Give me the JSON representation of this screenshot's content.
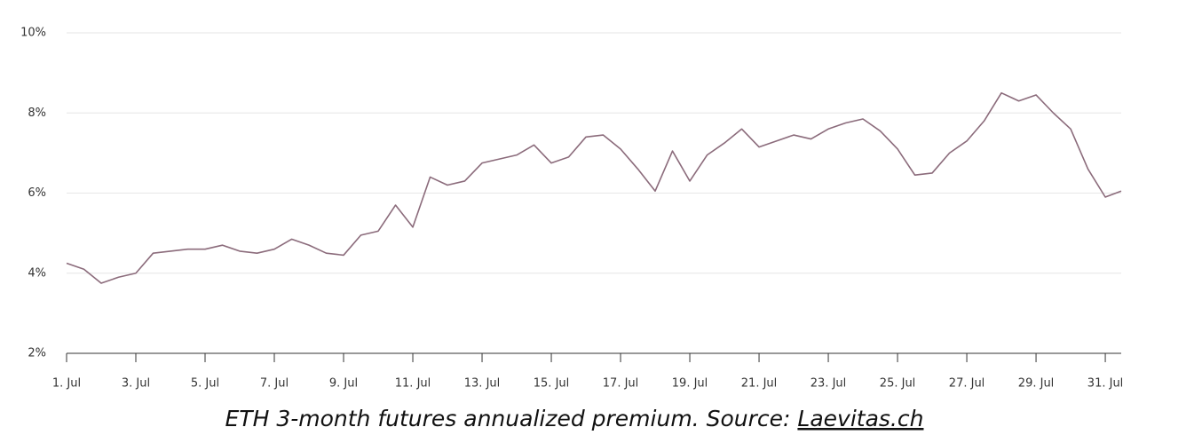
{
  "chart_data": {
    "type": "line",
    "x": [
      1,
      1.5,
      2,
      2.5,
      3,
      3.5,
      4,
      4.5,
      5,
      5.5,
      6,
      6.5,
      7,
      7.5,
      8,
      8.5,
      9,
      9.5,
      10,
      10.5,
      11,
      11.5,
      12,
      12.5,
      13,
      13.5,
      14,
      14.5,
      15,
      15.5,
      16,
      16.5,
      17,
      17.5,
      18,
      18.5,
      19,
      19.5,
      20,
      20.5,
      21,
      21.5,
      22,
      22.5,
      23,
      23.5,
      24,
      24.5,
      25,
      25.5,
      26,
      26.5,
      27,
      27.5,
      28,
      28.5,
      29,
      29.5,
      30,
      30.5,
      31,
      31.46
    ],
    "series": [
      {
        "name": "ETH 3-month futures annualized premium",
        "color": "#8b6b7b",
        "values": [
          4.25,
          4.1,
          3.75,
          3.9,
          4.0,
          4.5,
          4.55,
          4.6,
          4.6,
          4.7,
          4.55,
          4.5,
          4.6,
          4.85,
          4.7,
          4.5,
          4.45,
          4.95,
          5.05,
          5.7,
          5.15,
          6.4,
          6.2,
          6.3,
          6.75,
          6.85,
          6.95,
          7.2,
          6.75,
          6.9,
          7.4,
          7.45,
          7.1,
          6.6,
          6.05,
          7.05,
          6.3,
          6.95,
          7.25,
          7.6,
          7.15,
          7.3,
          7.45,
          7.35,
          7.6,
          7.75,
          7.85,
          7.55,
          7.1,
          6.45,
          6.5,
          7.0,
          7.3,
          7.8,
          8.5,
          8.3,
          8.45,
          8.0,
          7.6,
          6.6,
          5.9,
          6.05
        ]
      }
    ],
    "xlim": [
      1,
      31.46
    ],
    "xticks": [
      {
        "value": 1,
        "label": "1. Jul"
      },
      {
        "value": 3,
        "label": "3. Jul"
      },
      {
        "value": 5,
        "label": "5. Jul"
      },
      {
        "value": 7,
        "label": "7. Jul"
      },
      {
        "value": 9,
        "label": "9. Jul"
      },
      {
        "value": 11,
        "label": "11. Jul"
      },
      {
        "value": 13,
        "label": "13. Jul"
      },
      {
        "value": 15,
        "label": "15. Jul"
      },
      {
        "value": 17,
        "label": "17. Jul"
      },
      {
        "value": 19,
        "label": "19. Jul"
      },
      {
        "value": 21,
        "label": "21. Jul"
      },
      {
        "value": 23,
        "label": "23. Jul"
      },
      {
        "value": 25,
        "label": "25. Jul"
      },
      {
        "value": 27,
        "label": "27. Jul"
      },
      {
        "value": 29,
        "label": "29. Jul"
      },
      {
        "value": 31,
        "label": "31. Jul"
      }
    ],
    "ylim": [
      2,
      10
    ],
    "yticks": [
      {
        "value": 2,
        "label": "2%"
      },
      {
        "value": 4,
        "label": "4%"
      },
      {
        "value": 6,
        "label": "6%"
      },
      {
        "value": 8,
        "label": "8%"
      },
      {
        "value": 10,
        "label": "10%"
      }
    ],
    "grid": true,
    "caption": "ETH 3-month futures annualized premium. Source:",
    "source": "Laevitas.ch"
  }
}
